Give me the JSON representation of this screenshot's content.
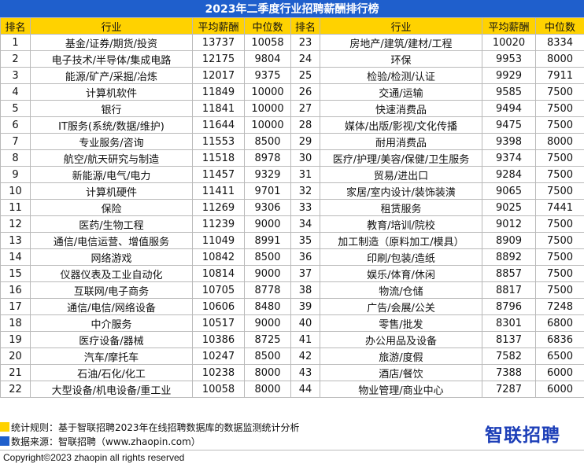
{
  "title": "2023年二季度行业招聘薪酬排行榜",
  "columns": {
    "rank": "排名",
    "industry": "行业",
    "avg_salary": "平均薪酬",
    "median": "中位数"
  },
  "rows_left": [
    {
      "rank": "1",
      "industry": "基金/证券/期货/投资",
      "avg": "13737",
      "median": "10058"
    },
    {
      "rank": "2",
      "industry": "电子技术/半导体/集成电路",
      "avg": "12175",
      "median": "9804"
    },
    {
      "rank": "3",
      "industry": "能源/矿产/采掘/冶炼",
      "avg": "12017",
      "median": "9375"
    },
    {
      "rank": "4",
      "industry": "计算机软件",
      "avg": "11849",
      "median": "10000"
    },
    {
      "rank": "5",
      "industry": "银行",
      "avg": "11841",
      "median": "10000"
    },
    {
      "rank": "6",
      "industry": "IT服务(系统/数据/维护)",
      "avg": "11644",
      "median": "10000"
    },
    {
      "rank": "7",
      "industry": "专业服务/咨询",
      "avg": "11553",
      "median": "8500"
    },
    {
      "rank": "8",
      "industry": "航空/航天研究与制造",
      "avg": "11518",
      "median": "8978"
    },
    {
      "rank": "9",
      "industry": "新能源/电气/电力",
      "avg": "11457",
      "median": "9329"
    },
    {
      "rank": "10",
      "industry": "计算机硬件",
      "avg": "11411",
      "median": "9701"
    },
    {
      "rank": "11",
      "industry": "保险",
      "avg": "11269",
      "median": "9306"
    },
    {
      "rank": "12",
      "industry": "医药/生物工程",
      "avg": "11239",
      "median": "9000"
    },
    {
      "rank": "13",
      "industry": "通信/电信运营、增值服务",
      "avg": "11049",
      "median": "8991"
    },
    {
      "rank": "14",
      "industry": "网络游戏",
      "avg": "10842",
      "median": "8500"
    },
    {
      "rank": "15",
      "industry": "仪器仪表及工业自动化",
      "avg": "10814",
      "median": "9000"
    },
    {
      "rank": "16",
      "industry": "互联网/电子商务",
      "avg": "10705",
      "median": "8778"
    },
    {
      "rank": "17",
      "industry": "通信/电信/网络设备",
      "avg": "10606",
      "median": "8480"
    },
    {
      "rank": "18",
      "industry": "中介服务",
      "avg": "10517",
      "median": "9000"
    },
    {
      "rank": "19",
      "industry": "医疗设备/器械",
      "avg": "10386",
      "median": "8725"
    },
    {
      "rank": "20",
      "industry": "汽车/摩托车",
      "avg": "10247",
      "median": "8500"
    },
    {
      "rank": "21",
      "industry": "石油/石化/化工",
      "avg": "10238",
      "median": "8000"
    },
    {
      "rank": "22",
      "industry": "大型设备/机电设备/重工业",
      "avg": "10058",
      "median": "8000"
    }
  ],
  "rows_right": [
    {
      "rank": "23",
      "industry": "房地产/建筑/建材/工程",
      "avg": "10020",
      "median": "8334"
    },
    {
      "rank": "24",
      "industry": "环保",
      "avg": "9953",
      "median": "8000"
    },
    {
      "rank": "25",
      "industry": "检验/检测/认证",
      "avg": "9929",
      "median": "7911"
    },
    {
      "rank": "26",
      "industry": "交通/运输",
      "avg": "9585",
      "median": "7500"
    },
    {
      "rank": "27",
      "industry": "快速消费品",
      "avg": "9494",
      "median": "7500"
    },
    {
      "rank": "28",
      "industry": "媒体/出版/影视/文化传播",
      "avg": "9475",
      "median": "7500"
    },
    {
      "rank": "29",
      "industry": "耐用消费品",
      "avg": "9398",
      "median": "8000"
    },
    {
      "rank": "30",
      "industry": "医疗/护理/美容/保健/卫生服务",
      "avg": "9374",
      "median": "7500"
    },
    {
      "rank": "31",
      "industry": "贸易/进出口",
      "avg": "9284",
      "median": "7500"
    },
    {
      "rank": "32",
      "industry": "家居/室内设计/装饰装潢",
      "avg": "9065",
      "median": "7500"
    },
    {
      "rank": "33",
      "industry": "租赁服务",
      "avg": "9025",
      "median": "7441"
    },
    {
      "rank": "34",
      "industry": "教育/培训/院校",
      "avg": "9012",
      "median": "7500"
    },
    {
      "rank": "35",
      "industry": "加工制造（原料加工/模具）",
      "avg": "8909",
      "median": "7500"
    },
    {
      "rank": "36",
      "industry": "印刷/包装/造纸",
      "avg": "8892",
      "median": "7500"
    },
    {
      "rank": "37",
      "industry": "娱乐/体育/休闲",
      "avg": "8857",
      "median": "7500"
    },
    {
      "rank": "38",
      "industry": "物流/仓储",
      "avg": "8817",
      "median": "7500"
    },
    {
      "rank": "39",
      "industry": "广告/会展/公关",
      "avg": "8796",
      "median": "7248"
    },
    {
      "rank": "40",
      "industry": "零售/批发",
      "avg": "8301",
      "median": "6800"
    },
    {
      "rank": "41",
      "industry": "办公用品及设备",
      "avg": "8137",
      "median": "6836"
    },
    {
      "rank": "42",
      "industry": "旅游/度假",
      "avg": "7582",
      "median": "6500"
    },
    {
      "rank": "43",
      "industry": "酒店/餐饮",
      "avg": "7388",
      "median": "6000"
    },
    {
      "rank": "44",
      "industry": "物业管理/商业中心",
      "avg": "7287",
      "median": "6000"
    }
  ],
  "footer": {
    "rule_text": "统计规则：基于智联招聘2023年在线招聘数据库的数据监测统计分析",
    "source_text": "数据来源：智联招聘（www.zhaopin.com）",
    "copyright": "Copyright©2023 zhaopin all rights reserved",
    "logo_text": "智联招聘"
  },
  "colors": {
    "title_bg": "#1f5fcc",
    "header_bg": "#ffd200",
    "rule_marker": "#ffd200",
    "source_marker": "#1f5fcc",
    "logo": "#1d3fb8"
  }
}
